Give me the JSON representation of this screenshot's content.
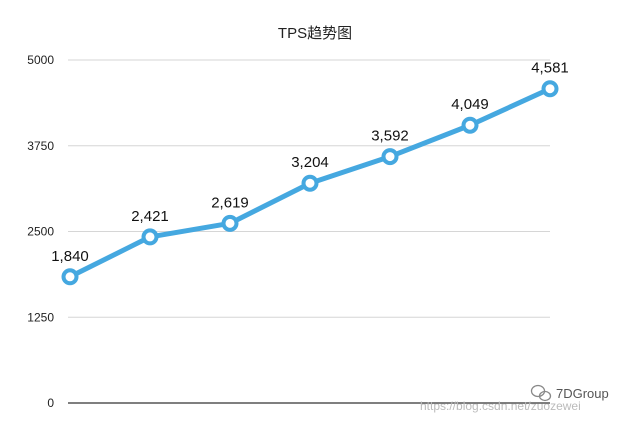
{
  "chart_data": {
    "type": "line",
    "title": "TPS趋势图",
    "xlabel": "",
    "ylabel": "",
    "ylim": [
      0,
      5000
    ],
    "yticks": [
      0,
      1250,
      2500,
      3750,
      5000
    ],
    "ytick_labels": [
      "0",
      "1250",
      "2500",
      "3750",
      "5000"
    ],
    "grid": true,
    "color": "#45a8e0",
    "series": [
      {
        "values": [
          1840,
          2421,
          2619,
          3204,
          3592,
          4049,
          4581
        ],
        "labels": [
          "1,840",
          "2,421",
          "2,619",
          "3,204",
          "3,592",
          "4,049",
          "4,581"
        ]
      }
    ]
  },
  "watermark": {
    "brand_icon": "wechat-icon",
    "brand": "7DGroup",
    "url": "https://blog.csdn.net/zuozewei"
  }
}
